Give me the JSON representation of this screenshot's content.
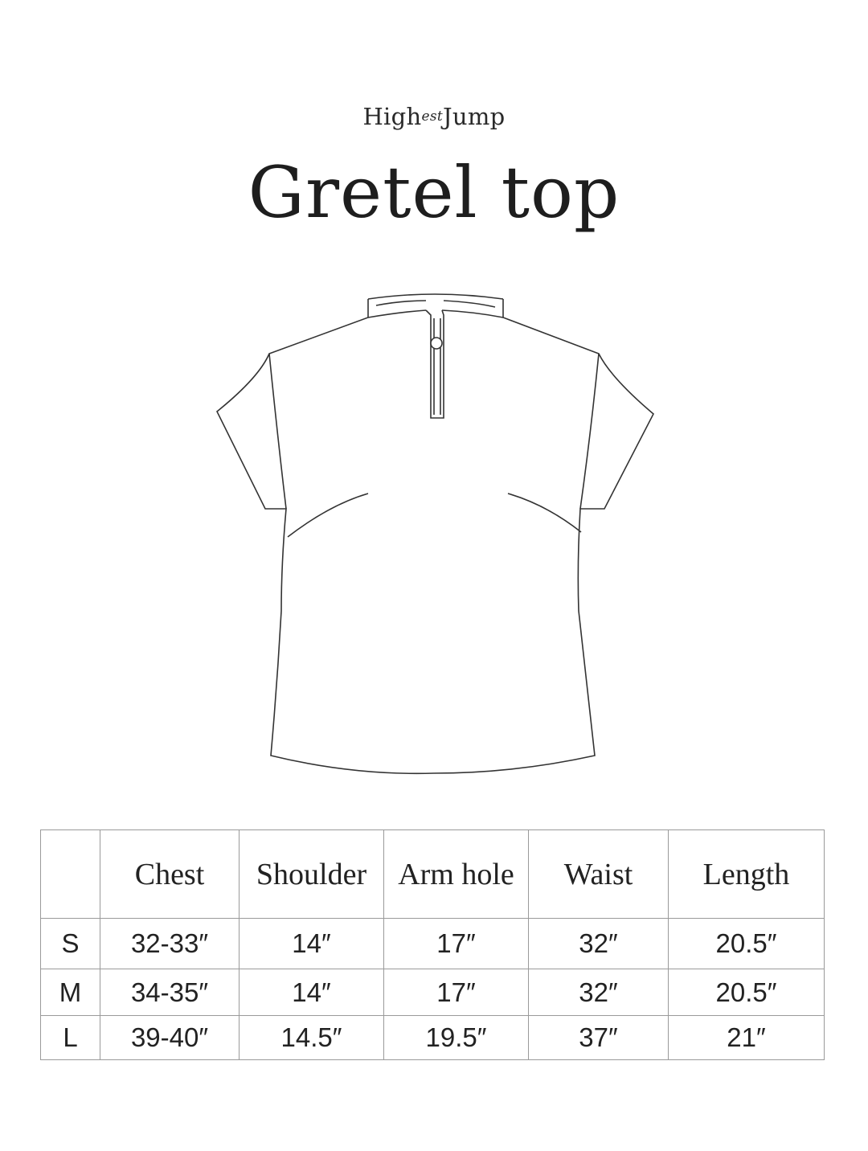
{
  "brand": {
    "logo_part1": "High",
    "logo_part2": "est",
    "logo_part3": "Jump"
  },
  "title": "Gretel top",
  "size_table": {
    "headers": [
      "",
      "Chest",
      "Shoulder",
      "Arm hole",
      "Waist",
      "Length"
    ],
    "rows": [
      {
        "size": "S",
        "values": [
          "32-33″",
          "14″",
          "17″",
          "32″",
          "20.5″"
        ]
      },
      {
        "size": "M",
        "values": [
          "34-35″",
          "14″",
          "17″",
          "32″",
          "20.5″"
        ]
      },
      {
        "size": "L",
        "values": [
          "39-40″",
          "14.5″",
          "19.5″",
          "37″",
          "21″"
        ]
      }
    ]
  }
}
